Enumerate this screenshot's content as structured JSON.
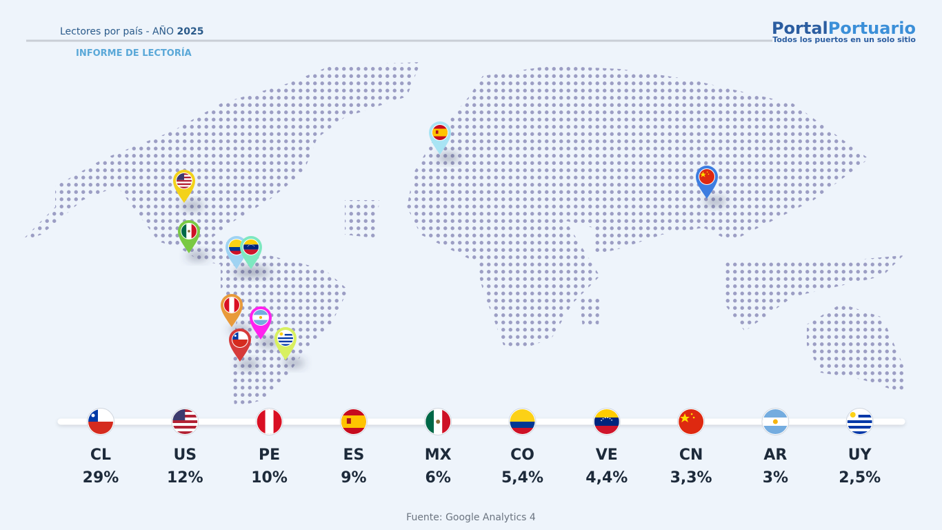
{
  "header": {
    "title": "Lectores por país - AÑO ",
    "year": "2025",
    "subtitle": "INFORME DE LECTORÍA"
  },
  "logo": {
    "part1": "Portal",
    "part2": "Portuario",
    "tagline": "Todos los puertos en un solo sitio"
  },
  "countries": [
    {
      "code": "CL",
      "share": "29%"
    },
    {
      "code": "US",
      "share": "12%"
    },
    {
      "code": "PE",
      "share": "10%"
    },
    {
      "code": "ES",
      "share": "9%"
    },
    {
      "code": "MX",
      "share": "6%"
    },
    {
      "code": "CO",
      "share": "5,4%"
    },
    {
      "code": "VE",
      "share": "4,4%"
    },
    {
      "code": "CN",
      "share": "3,3%"
    },
    {
      "code": "AR",
      "share": "3%"
    },
    {
      "code": "UY",
      "share": "2,5%"
    }
  ],
  "source": "Fuente: Google Analytics 4"
}
